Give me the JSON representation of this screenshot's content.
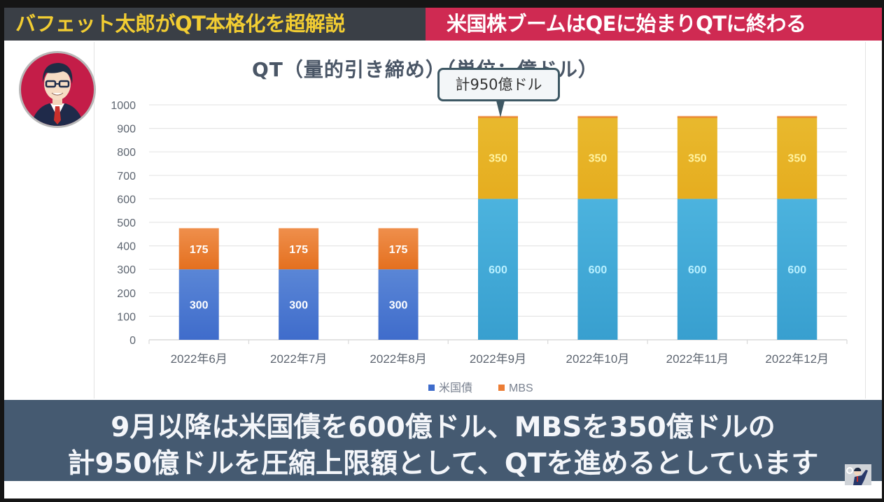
{
  "header": {
    "left_title": "バフェット太郎がQT本格化を超解説",
    "right_title": "米国株ブームはQEに始まりQTに終わる"
  },
  "callout": {
    "text": "計950億ドル"
  },
  "subtitle": {
    "line1": "9月以降は米国債を600億ドル、MBSを350億ドルの",
    "line2": "計950億ドルを圧縮上限額として、QTを進めるとしています"
  },
  "icons": {
    "avatar": "host-avatar",
    "corner": "presenter-thumbnail"
  },
  "colors": {
    "treasury_early": "#3f6ccb",
    "mbs_early": "#ec7d35",
    "treasury_late": "#40a9d8",
    "mbs_late": "#e6ad1f",
    "header_left_bg": "#3a3f46",
    "header_left_text": "#f2cd32",
    "header_right_bg": "#cf2a52",
    "subtitle_bg": "#455a71"
  },
  "chart_data": {
    "type": "bar",
    "stacked": true,
    "title": "QT（量的引き締め）（単位：億ドル）",
    "xlabel": "",
    "ylabel": "",
    "categories": [
      "2022年6月",
      "2022年7月",
      "2022年8月",
      "2022年9月",
      "2022年10月",
      "2022年11月",
      "2022年12月"
    ],
    "series": [
      {
        "name": "米国債",
        "values": [
          300,
          300,
          300,
          600,
          600,
          600,
          600
        ]
      },
      {
        "name": "MBS",
        "values": [
          175,
          175,
          175,
          350,
          350,
          350,
          350
        ]
      }
    ],
    "ylim": [
      0,
      1000
    ],
    "yticks": [
      0,
      100,
      200,
      300,
      400,
      500,
      600,
      700,
      800,
      900,
      1000
    ],
    "grid": true,
    "legend": "bottom"
  }
}
